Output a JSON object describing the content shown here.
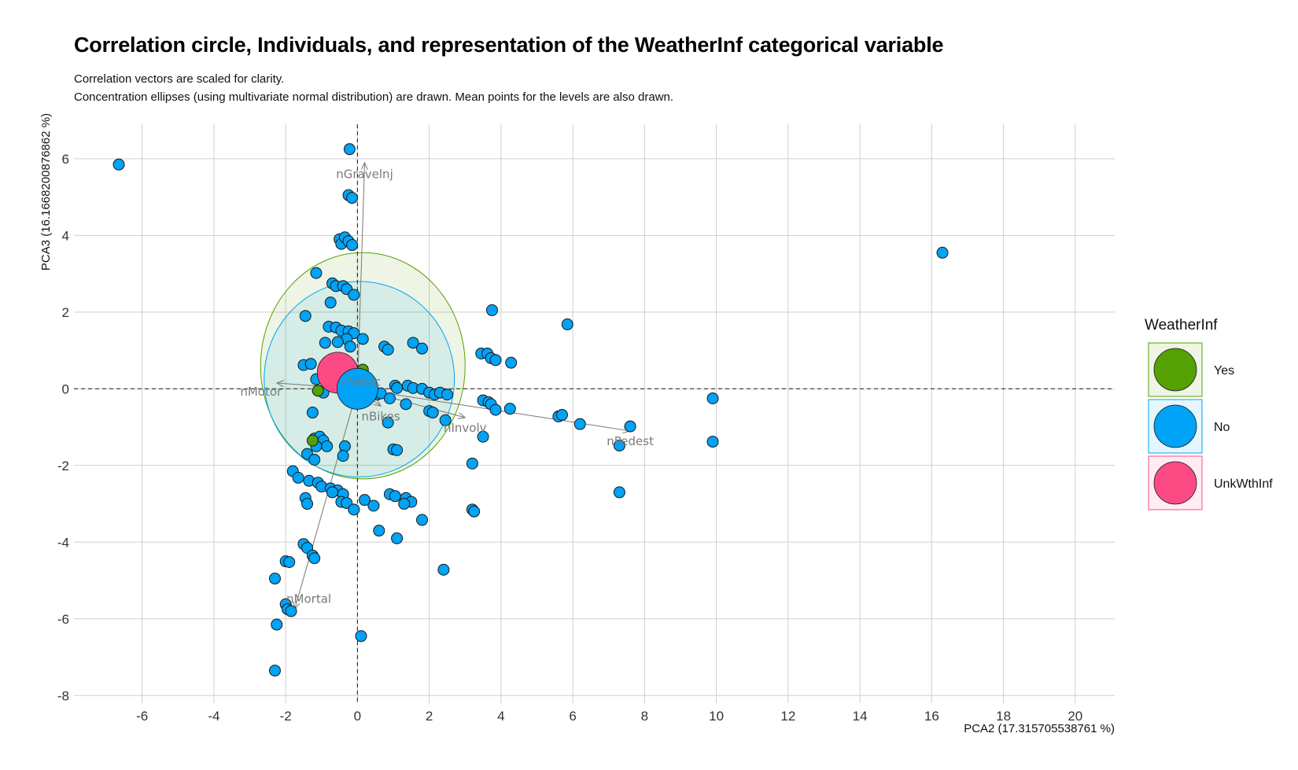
{
  "chart_data": {
    "type": "scatter",
    "title": "Correlation circle, Individuals, and representation of the WeatherInf categorical variable",
    "subtitle_lines": [
      "Correlation vectors are scaled for clarity.",
      "Concentration ellipses (using multivariate normal distribution) are drawn. Mean points for the levels are also drawn."
    ],
    "xlabel": "PCA2 (17.315705538761 %)",
    "ylabel": "PCA3 (16.1668200876862 %)",
    "xlim": [
      -7.9,
      21.1
    ],
    "ylim": [
      -8.2,
      6.9
    ],
    "xticks": [
      -6,
      -4,
      -2,
      0,
      2,
      4,
      6,
      8,
      10,
      12,
      14,
      16,
      18,
      20
    ],
    "yticks": [
      -8,
      -6,
      -4,
      -2,
      0,
      2,
      4,
      6
    ],
    "grid": true,
    "legend_position": "right",
    "legend": {
      "title": "WeatherInf",
      "entries": [
        {
          "label": "Yes",
          "color": "#55a002"
        },
        {
          "label": "No",
          "color": "#00a3f5"
        },
        {
          "label": "UnkWthInf",
          "color": "#fc4b84"
        }
      ]
    },
    "points": [
      [
        -6.65,
        5.85
      ],
      [
        -0.22,
        6.25
      ],
      [
        -0.25,
        5.05
      ],
      [
        -0.15,
        4.98
      ],
      [
        -0.5,
        3.9
      ],
      [
        -0.45,
        3.78
      ],
      [
        -0.35,
        3.95
      ],
      [
        -0.25,
        3.85
      ],
      [
        -0.15,
        3.75
      ],
      [
        16.3,
        3.55
      ],
      [
        -1.15,
        3.02
      ],
      [
        -0.7,
        2.75
      ],
      [
        -0.6,
        2.68
      ],
      [
        -0.4,
        2.68
      ],
      [
        -0.3,
        2.6
      ],
      [
        -0.1,
        2.45
      ],
      [
        -0.75,
        2.25
      ],
      [
        3.75,
        2.05
      ],
      [
        -1.45,
        1.9
      ],
      [
        5.85,
        1.68
      ],
      [
        -0.8,
        1.62
      ],
      [
        -0.6,
        1.6
      ],
      [
        -0.45,
        1.52
      ],
      [
        -0.25,
        1.5
      ],
      [
        -0.1,
        1.45
      ],
      [
        0.15,
        1.3
      ],
      [
        -0.3,
        1.3
      ],
      [
        -0.55,
        1.22
      ],
      [
        -0.9,
        1.2
      ],
      [
        -0.2,
        1.1
      ],
      [
        0.75,
        1.1
      ],
      [
        0.85,
        1.02
      ],
      [
        1.55,
        1.2
      ],
      [
        1.8,
        1.05
      ],
      [
        3.45,
        0.92
      ],
      [
        3.62,
        0.92
      ],
      [
        3.72,
        0.8
      ],
      [
        3.85,
        0.75
      ],
      [
        4.28,
        0.68
      ],
      [
        -1.5,
        0.62
      ],
      [
        -1.3,
        0.65
      ],
      [
        -1.15,
        0.25
      ],
      [
        -1.1,
        -0.05
      ],
      [
        -0.95,
        -0.1
      ],
      [
        -1.25,
        -0.62
      ],
      [
        -0.3,
        -0.05
      ],
      [
        0.3,
        -0.05
      ],
      [
        0.55,
        -0.15
      ],
      [
        0.65,
        -0.12
      ],
      [
        0.9,
        -0.25
      ],
      [
        1.05,
        0.08
      ],
      [
        1.1,
        0.02
      ],
      [
        1.4,
        0.08
      ],
      [
        1.55,
        0.02
      ],
      [
        1.8,
        0.0
      ],
      [
        2.0,
        -0.1
      ],
      [
        2.15,
        -0.15
      ],
      [
        2.3,
        -0.1
      ],
      [
        2.5,
        -0.15
      ],
      [
        1.35,
        -0.4
      ],
      [
        2.0,
        -0.58
      ],
      [
        2.1,
        -0.62
      ],
      [
        2.45,
        -0.82
      ],
      [
        0.85,
        -0.88
      ],
      [
        3.5,
        -0.3
      ],
      [
        3.65,
        -0.35
      ],
      [
        3.72,
        -0.4
      ],
      [
        3.85,
        -0.55
      ],
      [
        4.25,
        -0.52
      ],
      [
        5.6,
        -0.72
      ],
      [
        5.7,
        -0.68
      ],
      [
        6.2,
        -0.92
      ],
      [
        7.6,
        -0.98
      ],
      [
        9.9,
        -0.25
      ],
      [
        9.9,
        -1.38
      ],
      [
        7.3,
        -1.48
      ],
      [
        3.5,
        -1.25
      ],
      [
        3.2,
        -1.95
      ],
      [
        7.3,
        -2.7
      ],
      [
        -1.2,
        -1.3
      ],
      [
        -1.05,
        -1.25
      ],
      [
        -0.95,
        -1.35
      ],
      [
        -0.85,
        -1.5
      ],
      [
        -1.15,
        -1.5
      ],
      [
        -1.4,
        -1.7
      ],
      [
        -1.2,
        -1.85
      ],
      [
        -0.35,
        -1.5
      ],
      [
        -0.4,
        -1.75
      ],
      [
        1.0,
        -1.58
      ],
      [
        1.1,
        -1.6
      ],
      [
        -1.8,
        -2.15
      ],
      [
        -1.65,
        -2.32
      ],
      [
        -1.35,
        -2.4
      ],
      [
        -1.1,
        -2.45
      ],
      [
        -1.0,
        -2.55
      ],
      [
        -0.75,
        -2.6
      ],
      [
        -0.55,
        -2.65
      ],
      [
        -0.4,
        -2.75
      ],
      [
        -0.7,
        -2.7
      ],
      [
        -1.45,
        -2.85
      ],
      [
        -1.4,
        -3.0
      ],
      [
        -0.45,
        -2.95
      ],
      [
        -0.3,
        -2.98
      ],
      [
        -0.1,
        -3.15
      ],
      [
        0.2,
        -2.9
      ],
      [
        0.45,
        -3.05
      ],
      [
        0.9,
        -2.75
      ],
      [
        1.05,
        -2.8
      ],
      [
        1.35,
        -2.85
      ],
      [
        1.5,
        -2.95
      ],
      [
        1.3,
        -3.0
      ],
      [
        1.8,
        -3.42
      ],
      [
        3.2,
        -3.15
      ],
      [
        3.25,
        -3.2
      ],
      [
        0.6,
        -3.7
      ],
      [
        1.1,
        -3.9
      ],
      [
        2.4,
        -4.72
      ],
      [
        -1.5,
        -4.05
      ],
      [
        -1.4,
        -4.15
      ],
      [
        -1.25,
        -4.35
      ],
      [
        -1.2,
        -4.42
      ],
      [
        -2.0,
        -4.5
      ],
      [
        -1.9,
        -4.52
      ],
      [
        -2.3,
        -4.95
      ],
      [
        -2.0,
        -5.62
      ],
      [
        -1.95,
        -5.75
      ],
      [
        -1.85,
        -5.8
      ],
      [
        -2.25,
        -6.15
      ],
      [
        0.1,
        -6.45
      ],
      [
        -2.3,
        -7.35
      ]
    ],
    "group_points": [
      {
        "group": "Yes",
        "x": -1.1,
        "y": -0.05
      },
      {
        "group": "Yes",
        "x": -1.25,
        "y": -1.35
      },
      {
        "group": "Yes",
        "x": 0.15,
        "y": 0.5
      }
    ],
    "ellipses": [
      {
        "group": "Yes",
        "cx": 0.15,
        "cy": 0.6,
        "rx": 2.85,
        "ry": 2.95
      },
      {
        "group": "No",
        "cx": 0.05,
        "cy": 0.25,
        "rx": 2.65,
        "ry": 2.55
      }
    ],
    "means": [
      {
        "group": "UnkWthInf",
        "x": -0.55,
        "y": 0.42
      },
      {
        "group": "No",
        "x": 0.0,
        "y": 0.0
      }
    ],
    "vectors": [
      {
        "name": "nGravelnj",
        "x": 0.2,
        "y": 5.9
      },
      {
        "name": "nMotor",
        "x": -2.25,
        "y": 0.15
      },
      {
        "name": "nBikes",
        "x": 0.65,
        "y": -0.45
      },
      {
        "name": "nInvolv",
        "x": 3.0,
        "y": -0.75
      },
      {
        "name": "nPedest",
        "x": 7.6,
        "y": -1.1
      },
      {
        "name": "nMortal",
        "x": -1.75,
        "y": -5.75
      },
      {
        "name": "nVehic",
        "x": 0.1,
        "y": 0.45
      }
    ]
  }
}
